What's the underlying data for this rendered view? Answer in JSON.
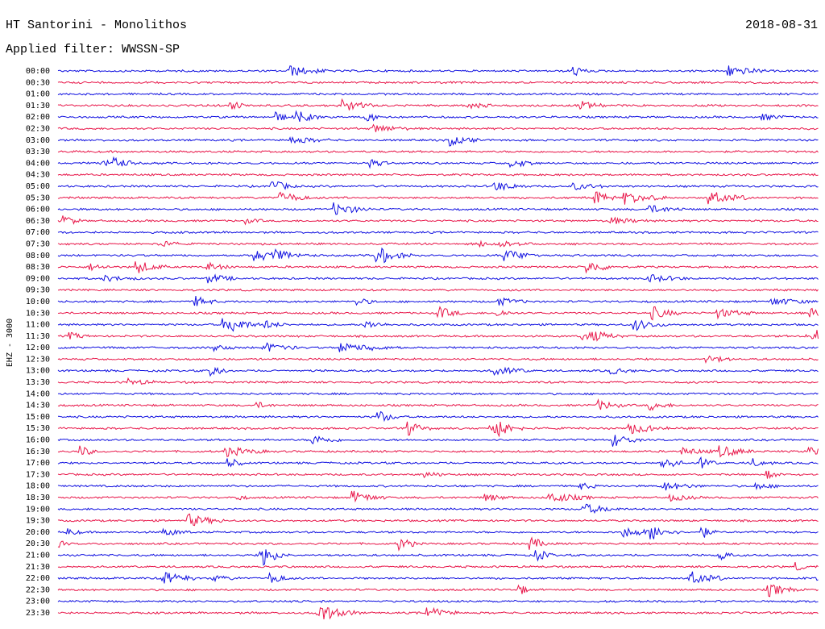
{
  "header": {
    "title": "HT Santorini - Monolithos",
    "filter": "Applied filter: WWSSN-SP",
    "date": "2018-08-31"
  },
  "axis_label": "EHZ - 3000",
  "trace_colors": [
    "#1010e0",
    "#e8174a"
  ],
  "time_labels": [
    "00:00",
    "00:30",
    "01:00",
    "01:30",
    "02:00",
    "02:30",
    "03:00",
    "03:30",
    "04:00",
    "04:30",
    "05:00",
    "05:30",
    "06:00",
    "06:30",
    "07:00",
    "07:30",
    "08:00",
    "08:30",
    "09:00",
    "09:30",
    "10:00",
    "10:30",
    "11:00",
    "11:30",
    "12:00",
    "12:30",
    "13:00",
    "13:30",
    "14:00",
    "14:30",
    "15:00",
    "15:30",
    "16:00",
    "16:30",
    "17:00",
    "17:30",
    "18:00",
    "18:30",
    "19:00",
    "19:30",
    "20:00",
    "20:30",
    "21:00",
    "21:30",
    "22:00",
    "22:30",
    "23:00",
    "23:30"
  ]
}
